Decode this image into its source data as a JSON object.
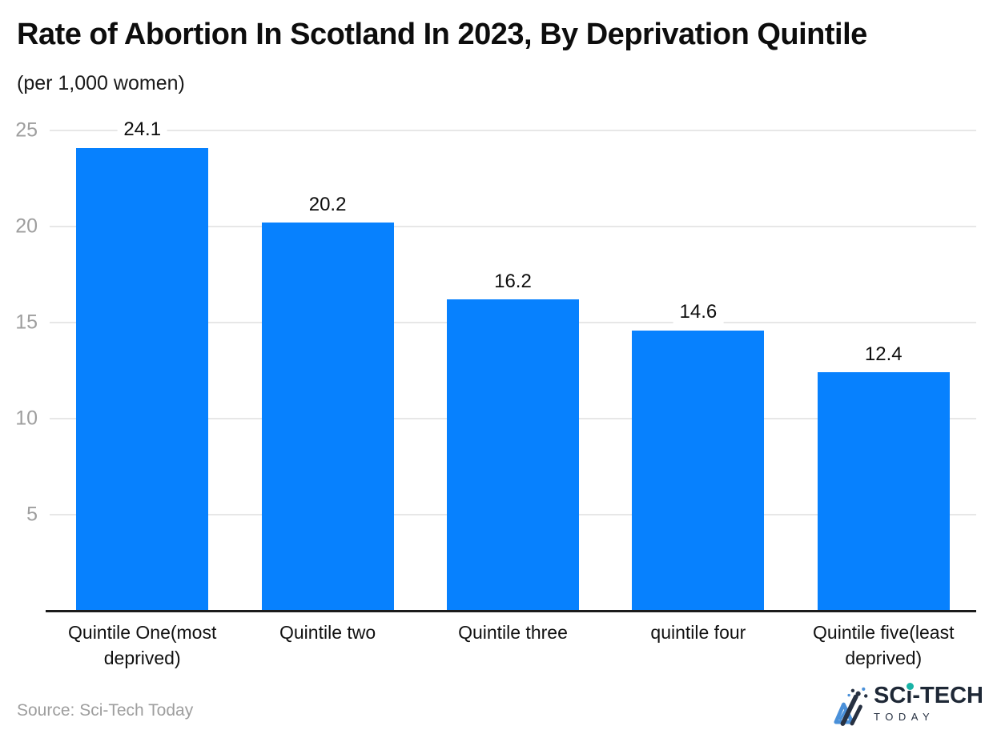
{
  "page": {
    "title": "Rate of Abortion In Scotland In 2023, By Deprivation Quintile",
    "subtitle": "(per 1,000 women)"
  },
  "chart_data": {
    "type": "bar",
    "title": "Rate of Abortion In Scotland In 2023, By Deprivation Quintile",
    "unit_label": "(per 1,000 women)",
    "categories": [
      "Quintile One(most deprived)",
      "Quintile two",
      "Quintile three",
      "quintile four",
      "Quintile five(least deprived)"
    ],
    "values": [
      24.1,
      20.2,
      16.2,
      14.6,
      12.4
    ],
    "value_labels": [
      "24.1",
      "20.2",
      "16.2",
      "14.6",
      "12.4"
    ],
    "xlabel": "",
    "ylabel": "per 1,000 women",
    "ylim": [
      0,
      25
    ],
    "yticks": [
      5,
      10,
      15,
      20,
      25
    ],
    "grid": true,
    "legend_position": "none",
    "bar_color": "#0781fe",
    "gridline_color": "#e7e7e7",
    "axis_line_color": "#1b1b1b",
    "tick_label_color": "#9e9e9e",
    "value_label_color": "#0d0d0d"
  },
  "footer": {
    "source": "Source: Sci-Tech Today",
    "logo": {
      "brand": "SCi-TECH",
      "tagline": "TODAY"
    }
  }
}
